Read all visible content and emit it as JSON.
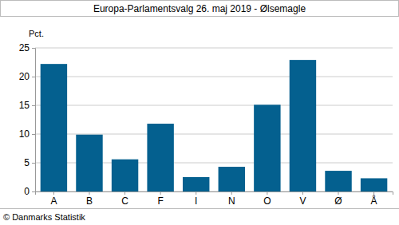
{
  "chart_data": {
    "type": "bar",
    "title": "Europa-Parlamentsvalg 26. maj 2019 - Ølsemagle",
    "y_label": "Pct.",
    "annotations": [
      "© Danmarks Statistik"
    ],
    "categories": [
      "A",
      "B",
      "C",
      "F",
      "I",
      "N",
      "O",
      "V",
      "Ø",
      "Å"
    ],
    "values": [
      22.2,
      9.9,
      5.6,
      11.8,
      2.5,
      4.3,
      15.1,
      22.9,
      3.6,
      2.3
    ],
    "color": "#04608f",
    "ylim": [
      0,
      25
    ],
    "yticks": [
      0,
      5,
      10,
      15,
      20,
      25
    ],
    "grid": true
  }
}
